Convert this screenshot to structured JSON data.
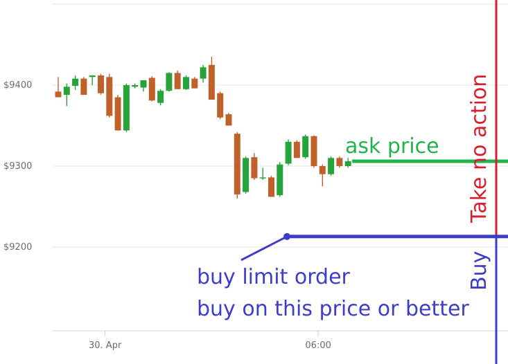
{
  "chart_data": {
    "type": "candlestick",
    "title": "",
    "xlabel": "",
    "ylabel": "",
    "ylim": [
      9100,
      9490
    ],
    "grid": true,
    "y_ticks": [
      {
        "value": 9400,
        "label": "$9400"
      },
      {
        "value": 9300,
        "label": "$9300"
      },
      {
        "value": 9200,
        "label": "$9200"
      }
    ],
    "x_ticks": [
      {
        "index": 5.5,
        "label": "30. Apr"
      },
      {
        "index": 30.5,
        "label": "06:00"
      }
    ],
    "colors": {
      "up": "#26a43a",
      "down": "#c0602a",
      "grid": "#e6e6e6",
      "tick": "#6b6b6b"
    },
    "candles": [
      {
        "o": 9392,
        "h": 9410,
        "l": 9385,
        "c": 9385
      },
      {
        "o": 9388,
        "h": 9402,
        "l": 9374,
        "c": 9398
      },
      {
        "o": 9399,
        "h": 9412,
        "l": 9394,
        "c": 9408
      },
      {
        "o": 9408,
        "h": 9410,
        "l": 9388,
        "c": 9388
      },
      {
        "o": 9410,
        "h": 9412,
        "l": 9400,
        "c": 9412
      },
      {
        "o": 9412,
        "h": 9414,
        "l": 9388,
        "c": 9390
      },
      {
        "o": 9410,
        "h": 9414,
        "l": 9360,
        "c": 9362
      },
      {
        "o": 9385,
        "h": 9388,
        "l": 9344,
        "c": 9344
      },
      {
        "o": 9344,
        "h": 9402,
        "l": 9342,
        "c": 9400
      },
      {
        "o": 9398,
        "h": 9402,
        "l": 9396,
        "c": 9400
      },
      {
        "o": 9397,
        "h": 9406,
        "l": 9392,
        "c": 9406
      },
      {
        "o": 9409,
        "h": 9411,
        "l": 9380,
        "c": 9381
      },
      {
        "o": 9378,
        "h": 9395,
        "l": 9375,
        "c": 9393
      },
      {
        "o": 9393,
        "h": 9416,
        "l": 9392,
        "c": 9415
      },
      {
        "o": 9415,
        "h": 9418,
        "l": 9395,
        "c": 9395
      },
      {
        "o": 9395,
        "h": 9412,
        "l": 9394,
        "c": 9410
      },
      {
        "o": 9408,
        "h": 9410,
        "l": 9396,
        "c": 9396
      },
      {
        "o": 9408,
        "h": 9425,
        "l": 9403,
        "c": 9422
      },
      {
        "o": 9425,
        "h": 9435,
        "l": 9382,
        "c": 9382
      },
      {
        "o": 9390,
        "h": 9392,
        "l": 9358,
        "c": 9360
      },
      {
        "o": 9364,
        "h": 9366,
        "l": 9350,
        "c": 9350
      },
      {
        "o": 9340,
        "h": 9342,
        "l": 9260,
        "c": 9265
      },
      {
        "o": 9268,
        "h": 9312,
        "l": 9266,
        "c": 9310
      },
      {
        "o": 9311,
        "h": 9316,
        "l": 9283,
        "c": 9285
      },
      {
        "o": 9285,
        "h": 9298,
        "l": 9283,
        "c": 9286
      },
      {
        "o": 9286,
        "h": 9288,
        "l": 9262,
        "c": 9262
      },
      {
        "o": 9264,
        "h": 9305,
        "l": 9262,
        "c": 9302
      },
      {
        "o": 9303,
        "h": 9333,
        "l": 9301,
        "c": 9330
      },
      {
        "o": 9330,
        "h": 9332,
        "l": 9310,
        "c": 9310
      },
      {
        "o": 9311,
        "h": 9339,
        "l": 9309,
        "c": 9337
      },
      {
        "o": 9337,
        "h": 9338,
        "l": 9298,
        "c": 9300
      },
      {
        "o": 9300,
        "h": 9302,
        "l": 9275,
        "c": 9290
      },
      {
        "o": 9290,
        "h": 9312,
        "l": 9288,
        "c": 9310
      },
      {
        "o": 9310,
        "h": 9312,
        "l": 9298,
        "c": 9300
      },
      {
        "o": 9300,
        "h": 9310,
        "l": 9298,
        "c": 9306
      }
    ],
    "annotations": {
      "ask": {
        "price": 9306,
        "label": "ask price",
        "color": "#22b24c"
      },
      "limit": {
        "price": 9213,
        "from_index": 27,
        "label_line1": "buy limit order",
        "label_line2": "buy on this price or better",
        "color": "#3d3dc8"
      },
      "red_line": {
        "label": "Take no action",
        "color": "#d81e2c"
      },
      "buy_line": {
        "label": "Buy",
        "color": "#3d3dc8"
      }
    }
  }
}
